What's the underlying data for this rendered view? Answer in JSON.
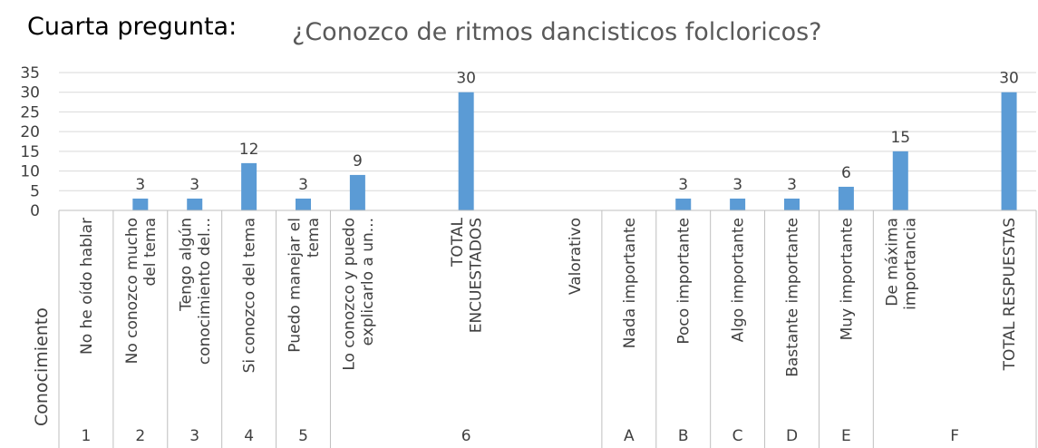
{
  "chart_data": {
    "type": "bar",
    "title": "Cuarta pregunta:",
    "subtitle": "¿Conozco de ritmos dancisticos folcloricos?",
    "row_label": "Conocimiento",
    "categories": [
      "No he oído hablar",
      "No conozco mucho\ndel tema",
      "Tengo algún\nconocimiento del...",
      "Si conozco del tema",
      "Puedo manejar el\ntema",
      "Lo conozco y puedo\nexplicarlo a un...",
      null,
      "TOTAL\nENCUESTADOS",
      null,
      "Valorativo",
      "Nada importante",
      "Poco importante",
      "Algo importante",
      "Bastante importante",
      "Muy importante",
      "De máxima\nimportancia",
      null,
      "TOTAL RESPUESTAS"
    ],
    "groups": [
      {
        "label": "1",
        "span": [
          0,
          0
        ]
      },
      {
        "label": "2",
        "span": [
          1,
          1
        ]
      },
      {
        "label": "3",
        "span": [
          2,
          2
        ]
      },
      {
        "label": "4",
        "span": [
          3,
          3
        ]
      },
      {
        "label": "5",
        "span": [
          4,
          4
        ]
      },
      {
        "label": "6",
        "span": [
          5,
          9
        ]
      },
      {
        "label": "A",
        "span": [
          10,
          10
        ]
      },
      {
        "label": "B",
        "span": [
          11,
          11
        ]
      },
      {
        "label": "C",
        "span": [
          12,
          12
        ]
      },
      {
        "label": "D",
        "span": [
          13,
          13
        ]
      },
      {
        "label": "E",
        "span": [
          14,
          14
        ]
      },
      {
        "label": "F",
        "span": [
          15,
          17
        ]
      }
    ],
    "values": [
      null,
      3,
      3,
      12,
      3,
      9,
      null,
      30,
      null,
      null,
      null,
      3,
      3,
      3,
      6,
      15,
      null,
      30
    ],
    "color": "#5b9bd5",
    "ylim": [
      0,
      35
    ],
    "yticks": [
      0,
      5,
      10,
      15,
      20,
      25,
      30,
      35
    ],
    "grid": true
  }
}
